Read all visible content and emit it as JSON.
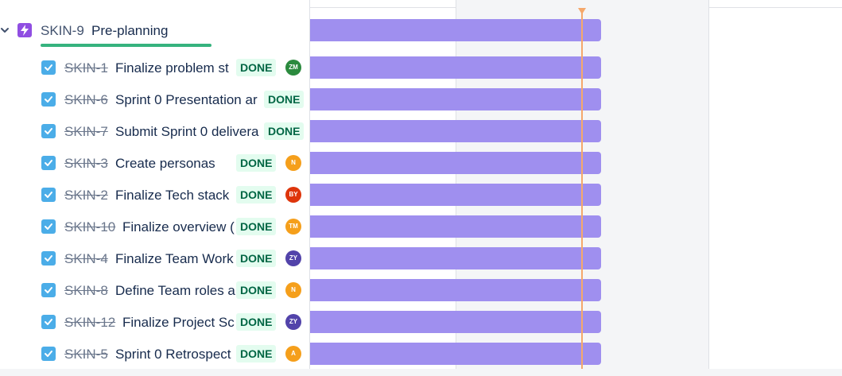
{
  "parent": {
    "key": "SKIN-9",
    "title": "Pre-planning",
    "icon": "epic-lightning-icon",
    "progress": 1.0
  },
  "status_label": "DONE",
  "colors": {
    "bar": "#9f8fef",
    "today_line": "#f5a86b",
    "checkbox": "#4bade8",
    "epic": "#904ee2",
    "done_bg": "#e3fcef",
    "done_text": "#006644",
    "progress": "#36b37e"
  },
  "issues": [
    {
      "key": "SKIN-1",
      "title": "Finalize problem st",
      "status": "DONE",
      "assignee": "ZM",
      "avatar_color": "#2b8a3e"
    },
    {
      "key": "SKIN-6",
      "title": "Sprint 0 Presentation ar",
      "status": "DONE",
      "assignee": "",
      "avatar_color": ""
    },
    {
      "key": "SKIN-7",
      "title": "Submit Sprint 0 delivera",
      "status": "DONE",
      "assignee": "",
      "avatar_color": ""
    },
    {
      "key": "SKIN-3",
      "title": "Create personas",
      "status": "DONE",
      "assignee": "N",
      "avatar_color": "#f59f1b"
    },
    {
      "key": "SKIN-2",
      "title": "Finalize Tech stack",
      "status": "DONE",
      "assignee": "BY",
      "avatar_color": "#de350b"
    },
    {
      "key": "SKIN-10",
      "title": "Finalize overview (",
      "status": "DONE",
      "assignee": "TM",
      "avatar_color": "#f59f1b"
    },
    {
      "key": "SKIN-4",
      "title": "Finalize Team Work",
      "status": "DONE",
      "assignee": "ZY",
      "avatar_color": "#5243aa"
    },
    {
      "key": "SKIN-8",
      "title": "Define Team roles a",
      "status": "DONE",
      "assignee": "N",
      "avatar_color": "#f59f1b"
    },
    {
      "key": "SKIN-12",
      "title": "Finalize Project Sc",
      "status": "DONE",
      "assignee": "ZY",
      "avatar_color": "#5243aa"
    },
    {
      "key": "SKIN-5",
      "title": "Sprint 0 Retrospect",
      "status": "DONE",
      "assignee": "A",
      "avatar_color": "#f59f1b"
    }
  ]
}
